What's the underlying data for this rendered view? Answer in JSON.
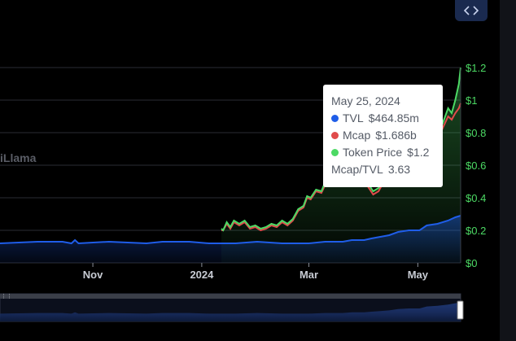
{
  "watermark": "iLlama",
  "embed_icon": "code-brackets-icon",
  "tooltip": {
    "date": "May 25, 2024",
    "rows": [
      {
        "label": "TVL",
        "value": "$464.85m",
        "color": "#1f5de8"
      },
      {
        "label": "Mcap",
        "value": "$1.686b",
        "color": "#e04b4b"
      },
      {
        "label": "Token Price",
        "value": "$1.2",
        "color": "#4cd964"
      }
    ],
    "ratio_label": "Mcap/TVL",
    "ratio_value": "3.63"
  },
  "colors": {
    "tvl": "#1f5de8",
    "mcap": "#e04b4b",
    "price": "#4cd964",
    "axis_text": "#c8ccd4",
    "price_axis_text": "#4cd964",
    "grid": "#2a2d33"
  },
  "chart_data": {
    "type": "line",
    "title": "",
    "x_ticks": [
      "Nov",
      "2024",
      "Mar",
      "May"
    ],
    "y_ticks": [
      "$0",
      "$0.2",
      "$0.4",
      "$0.6",
      "$0.8",
      "$1",
      "$1.2"
    ],
    "ylim": [
      0,
      1.2
    ],
    "xlim": [
      "2023-09-10",
      "2024-05-25"
    ],
    "grid": true,
    "series": [
      {
        "name": "Token Price",
        "axis": "right",
        "points": [
          [
            "2024-01-12",
            0.21
          ],
          [
            "2024-01-13",
            0.2
          ],
          [
            "2024-01-15",
            0.25
          ],
          [
            "2024-01-17",
            0.22
          ],
          [
            "2024-01-19",
            0.26
          ],
          [
            "2024-01-22",
            0.24
          ],
          [
            "2024-01-25",
            0.26
          ],
          [
            "2024-01-28",
            0.22
          ],
          [
            "2024-01-31",
            0.23
          ],
          [
            "2024-02-03",
            0.21
          ],
          [
            "2024-02-06",
            0.22
          ],
          [
            "2024-02-09",
            0.24
          ],
          [
            "2024-02-12",
            0.23
          ],
          [
            "2024-02-15",
            0.26
          ],
          [
            "2024-02-18",
            0.24
          ],
          [
            "2024-02-21",
            0.27
          ],
          [
            "2024-02-24",
            0.33
          ],
          [
            "2024-02-27",
            0.35
          ],
          [
            "2024-02-29",
            0.41
          ],
          [
            "2024-03-02",
            0.4
          ],
          [
            "2024-03-05",
            0.45
          ],
          [
            "2024-03-08",
            0.44
          ],
          [
            "2024-03-11",
            0.52
          ],
          [
            "2024-03-13",
            0.5
          ],
          [
            "2024-03-16",
            0.58
          ],
          [
            "2024-03-19",
            0.6
          ],
          [
            "2024-03-22",
            0.56
          ],
          [
            "2024-03-25",
            0.58
          ],
          [
            "2024-03-28",
            0.52
          ],
          [
            "2024-03-31",
            0.55
          ],
          [
            "2024-04-03",
            0.49
          ],
          [
            "2024-04-06",
            0.44
          ],
          [
            "2024-04-09",
            0.46
          ],
          [
            "2024-04-12",
            0.52
          ],
          [
            "2024-04-15",
            0.54
          ],
          [
            "2024-04-18",
            0.6
          ],
          [
            "2024-04-21",
            0.62
          ],
          [
            "2024-04-24",
            0.65
          ],
          [
            "2024-04-27",
            0.6
          ],
          [
            "2024-04-30",
            0.64
          ],
          [
            "2024-05-03",
            0.66
          ],
          [
            "2024-05-06",
            0.7
          ],
          [
            "2024-05-09",
            0.72
          ],
          [
            "2024-05-12",
            0.78
          ],
          [
            "2024-05-15",
            0.86
          ],
          [
            "2024-05-18",
            0.95
          ],
          [
            "2024-05-20",
            0.92
          ],
          [
            "2024-05-22",
            1.0
          ],
          [
            "2024-05-24",
            1.1
          ],
          [
            "2024-05-25",
            1.2
          ]
        ]
      },
      {
        "name": "Mcap",
        "axis": "right",
        "points": [
          [
            "2024-01-12",
            0.2
          ],
          [
            "2024-01-13",
            0.2
          ],
          [
            "2024-01-15",
            0.24
          ],
          [
            "2024-01-17",
            0.21
          ],
          [
            "2024-01-19",
            0.25
          ],
          [
            "2024-01-22",
            0.23
          ],
          [
            "2024-01-25",
            0.25
          ],
          [
            "2024-01-28",
            0.21
          ],
          [
            "2024-01-31",
            0.22
          ],
          [
            "2024-02-03",
            0.2
          ],
          [
            "2024-02-06",
            0.21
          ],
          [
            "2024-02-09",
            0.23
          ],
          [
            "2024-02-12",
            0.22
          ],
          [
            "2024-02-15",
            0.25
          ],
          [
            "2024-02-18",
            0.23
          ],
          [
            "2024-02-21",
            0.26
          ],
          [
            "2024-02-24",
            0.32
          ],
          [
            "2024-02-27",
            0.34
          ],
          [
            "2024-02-29",
            0.4
          ],
          [
            "2024-03-02",
            0.39
          ],
          [
            "2024-03-05",
            0.44
          ],
          [
            "2024-03-08",
            0.43
          ],
          [
            "2024-03-11",
            0.5
          ],
          [
            "2024-03-13",
            0.49
          ],
          [
            "2024-03-16",
            0.56
          ],
          [
            "2024-03-19",
            0.58
          ],
          [
            "2024-03-22",
            0.55
          ],
          [
            "2024-03-25",
            0.57
          ],
          [
            "2024-03-28",
            0.51
          ],
          [
            "2024-03-31",
            0.53
          ],
          [
            "2024-04-03",
            0.47
          ],
          [
            "2024-04-06",
            0.42
          ],
          [
            "2024-04-09",
            0.44
          ],
          [
            "2024-04-12",
            0.5
          ],
          [
            "2024-04-15",
            0.52
          ],
          [
            "2024-04-18",
            0.58
          ],
          [
            "2024-04-21",
            0.6
          ],
          [
            "2024-04-24",
            0.63
          ],
          [
            "2024-04-27",
            0.58
          ],
          [
            "2024-04-30",
            0.62
          ],
          [
            "2024-05-03",
            0.64
          ],
          [
            "2024-05-06",
            0.68
          ],
          [
            "2024-05-09",
            0.7
          ],
          [
            "2024-05-12",
            0.75
          ],
          [
            "2024-05-15",
            0.83
          ],
          [
            "2024-05-18",
            0.9
          ],
          [
            "2024-05-20",
            0.88
          ],
          [
            "2024-05-22",
            0.92
          ],
          [
            "2024-05-24",
            0.95
          ],
          [
            "2024-05-25",
            0.98
          ]
        ]
      },
      {
        "name": "TVL",
        "axis": "right",
        "points": [
          [
            "2023-09-10",
            0.12
          ],
          [
            "2023-10-01",
            0.13
          ],
          [
            "2023-10-15",
            0.13
          ],
          [
            "2023-10-20",
            0.12
          ],
          [
            "2023-10-22",
            0.14
          ],
          [
            "2023-10-24",
            0.12
          ],
          [
            "2023-11-10",
            0.13
          ],
          [
            "2023-12-01",
            0.12
          ],
          [
            "2023-12-10",
            0.13
          ],
          [
            "2023-12-25",
            0.13
          ],
          [
            "2024-01-05",
            0.12
          ],
          [
            "2024-01-20",
            0.12
          ],
          [
            "2024-02-01",
            0.13
          ],
          [
            "2024-02-15",
            0.12
          ],
          [
            "2024-03-01",
            0.12
          ],
          [
            "2024-03-10",
            0.13
          ],
          [
            "2024-03-20",
            0.13
          ],
          [
            "2024-03-25",
            0.14
          ],
          [
            "2024-04-01",
            0.14
          ],
          [
            "2024-04-05",
            0.15
          ],
          [
            "2024-04-10",
            0.16
          ],
          [
            "2024-04-15",
            0.17
          ],
          [
            "2024-04-20",
            0.19
          ],
          [
            "2024-04-26",
            0.2
          ],
          [
            "2024-05-02",
            0.2
          ],
          [
            "2024-05-06",
            0.23
          ],
          [
            "2024-05-12",
            0.24
          ],
          [
            "2024-05-18",
            0.26
          ],
          [
            "2024-05-22",
            0.28
          ],
          [
            "2024-05-25",
            0.29
          ]
        ]
      }
    ]
  }
}
